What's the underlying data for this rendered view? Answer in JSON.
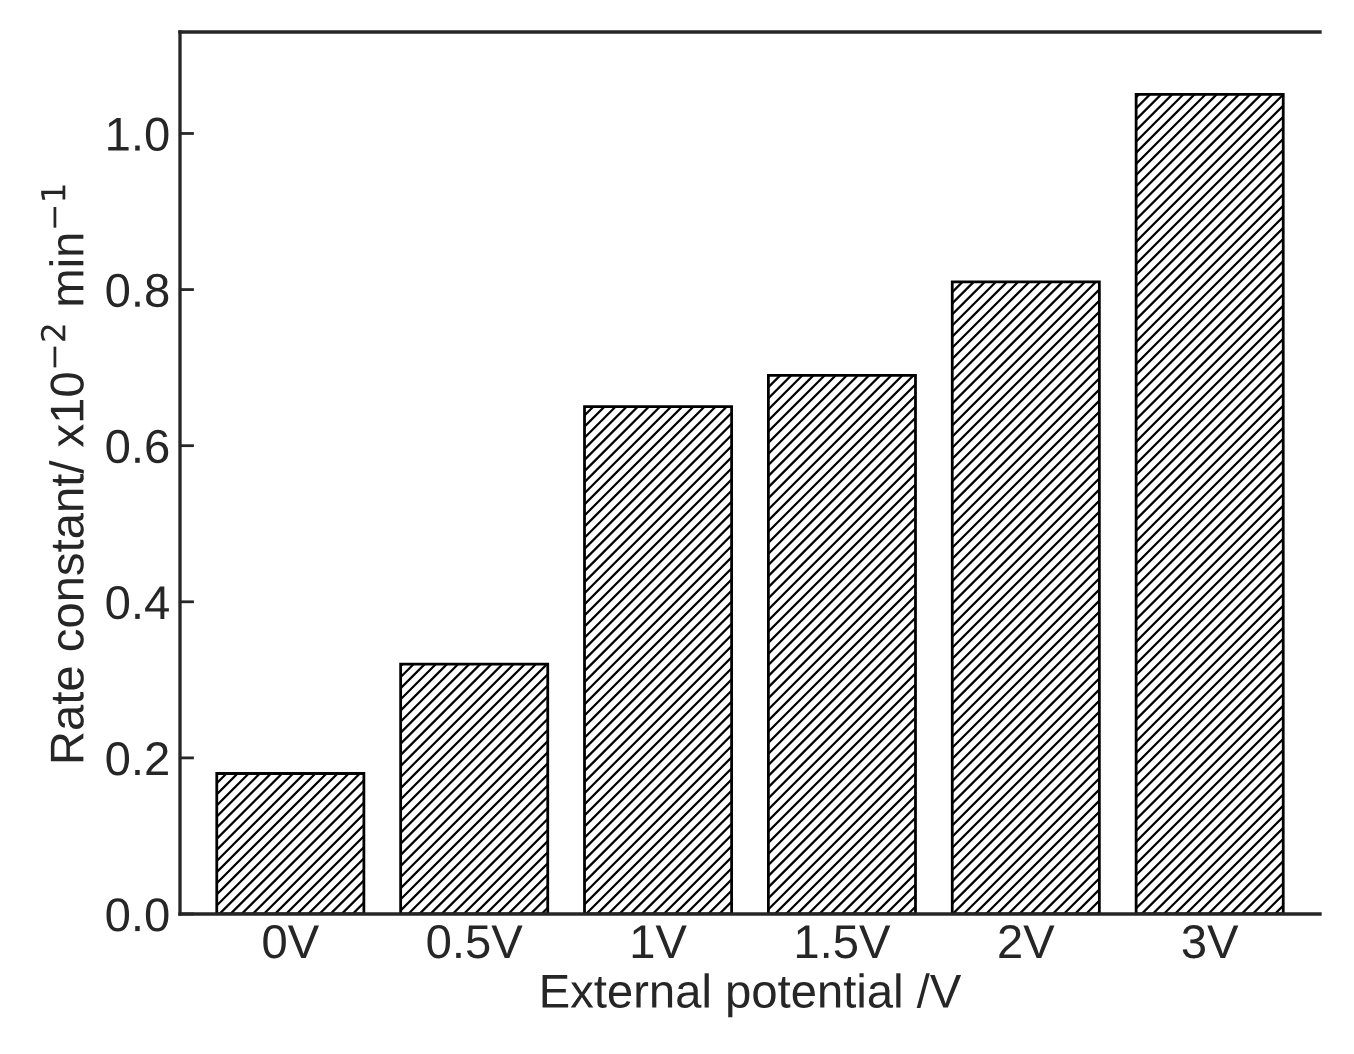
{
  "chart_data": {
    "type": "bar",
    "xlabel": "External potential /V",
    "ylabel": "Rate constant/ x10$^{−2}$ min$^{−1}$",
    "categories": [
      "0V",
      "0.5V",
      "1V",
      "1.5V",
      "2V",
      "3V"
    ],
    "values": [
      0.18,
      0.32,
      0.65,
      0.69,
      0.81,
      1.05
    ],
    "color": "#000000",
    "ylim": [
      0,
      1.13
    ],
    "yticks": [
      {
        "value": 0,
        "label": "0.0"
      },
      0.2,
      0.4,
      0.6,
      0.8,
      {
        "value": 1,
        "label": "1.0"
      }
    ],
    "grid": false,
    "legend": false
  }
}
